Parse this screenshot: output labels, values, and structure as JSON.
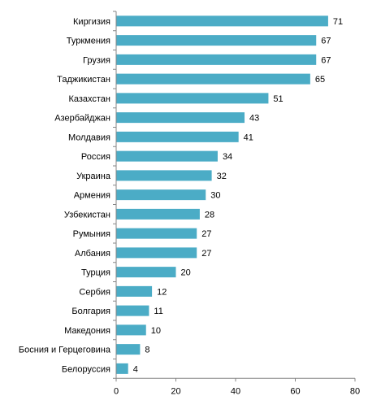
{
  "chart_data": {
    "type": "bar",
    "orientation": "horizontal",
    "categories": [
      "Киргизия",
      "Туркмения",
      "Грузия",
      "Таджикистан",
      "Казахстан",
      "Азербайджан",
      "Молдавия",
      "Россия",
      "Украина",
      "Армения",
      "Узбекистан",
      "Румыния",
      "Албания",
      "Турция",
      "Сербия",
      "Болгария",
      "Македония",
      "Босния и Герцеговина",
      "Белоруссия"
    ],
    "values": [
      71,
      67,
      67,
      65,
      51,
      43,
      41,
      34,
      32,
      30,
      28,
      27,
      27,
      20,
      12,
      11,
      10,
      8,
      4
    ],
    "value_labels": [
      "71",
      "67",
      "67",
      "65",
      "51",
      "43",
      "41",
      "34",
      "32",
      "30",
      "28",
      "27",
      "27",
      "20",
      "12",
      "11",
      "10",
      "8",
      "4"
    ],
    "x_ticks": [
      "0",
      "20",
      "40",
      "60",
      "80"
    ],
    "xlim": [
      0,
      80
    ],
    "title": "",
    "xlabel": "",
    "ylabel": "",
    "grid": false,
    "legend": "none",
    "bar_color": "#4BACC6",
    "axis_color": "#868686"
  }
}
